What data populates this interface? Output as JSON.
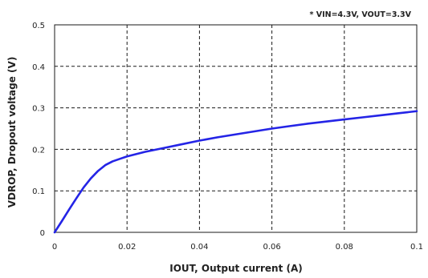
{
  "chart_data": {
    "type": "line",
    "xlabel": "IOUT, Output current (A)",
    "ylabel": "VDROP, Dropout voltage (V)",
    "annotation": "* VIN=4.3V, VOUT=3.3V",
    "xlim": [
      0,
      0.1
    ],
    "ylim": [
      0,
      0.5
    ],
    "grid": true,
    "x_ticks": [
      0,
      0.02,
      0.04,
      0.06,
      0.08,
      0.1
    ],
    "x_tick_labels": [
      "0",
      "0.02",
      "0.04",
      "0.06",
      "0.08",
      "0.1"
    ],
    "y_ticks": [
      0,
      0.1,
      0.2,
      0.3,
      0.4,
      0.5
    ],
    "y_tick_labels": [
      "0",
      "0.1",
      "0.2",
      "0.3",
      "0.4",
      "0.5"
    ],
    "series": [
      {
        "color": "#2424e6",
        "x": [
          0,
          0.002,
          0.004,
          0.006,
          0.008,
          0.01,
          0.012,
          0.014,
          0.016,
          0.018,
          0.02,
          0.025,
          0.03,
          0.035,
          0.04,
          0.045,
          0.05,
          0.055,
          0.06,
          0.065,
          0.07,
          0.075,
          0.08,
          0.085,
          0.09,
          0.095,
          0.1
        ],
        "y": [
          0,
          0.027,
          0.055,
          0.082,
          0.108,
          0.13,
          0.148,
          0.162,
          0.171,
          0.177,
          0.183,
          0.194,
          0.203,
          0.212,
          0.221,
          0.229,
          0.236,
          0.243,
          0.25,
          0.256,
          0.262,
          0.267,
          0.272,
          0.277,
          0.282,
          0.287,
          0.292
        ]
      }
    ]
  }
}
